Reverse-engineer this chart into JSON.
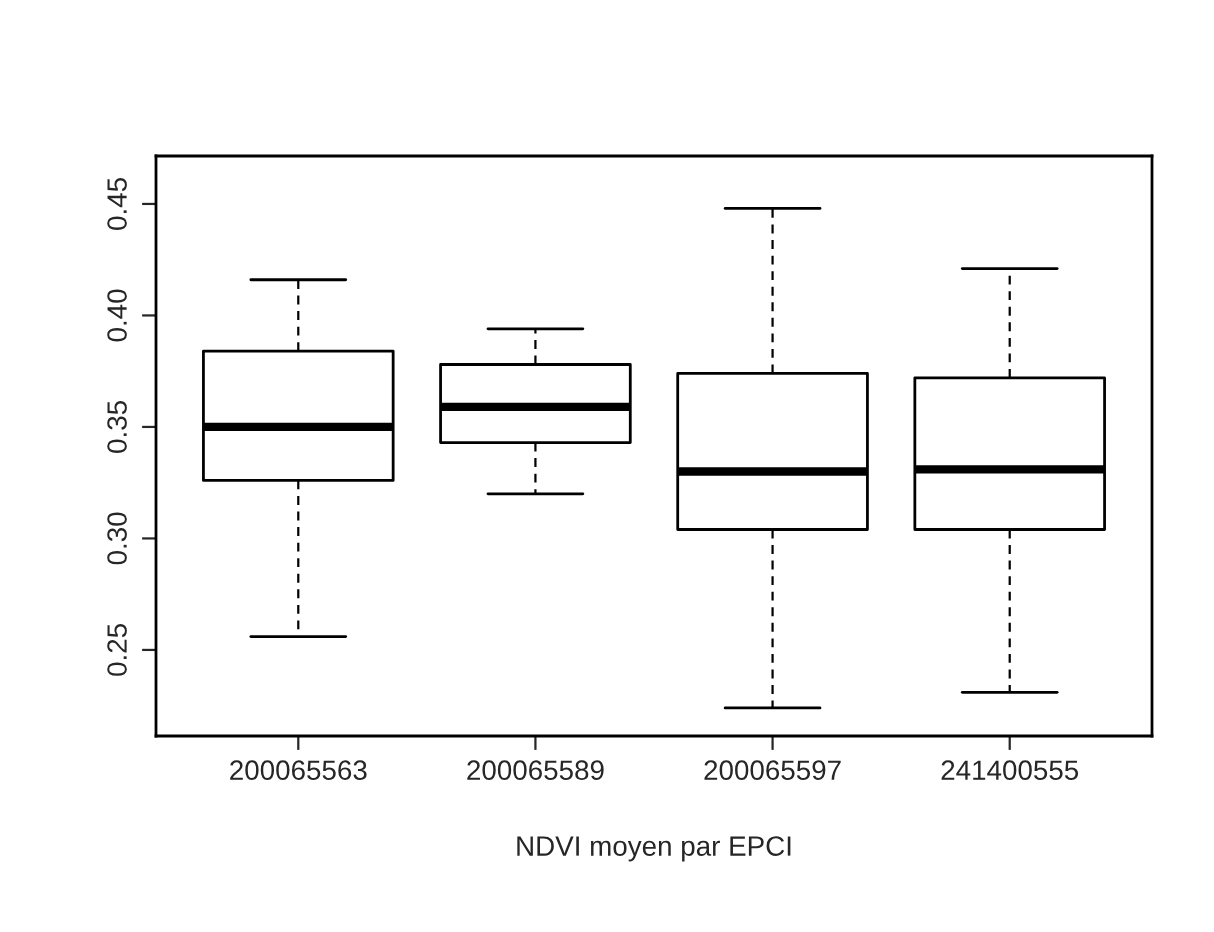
{
  "chart_data": {
    "type": "box",
    "xlabel": "NDVI moyen par EPCI",
    "categories": [
      "200065563",
      "200065589",
      "200065597",
      "241400555"
    ],
    "boxes": [
      {
        "low": 0.256,
        "q1": 0.326,
        "median": 0.35,
        "q3": 0.384,
        "high": 0.416
      },
      {
        "low": 0.32,
        "q1": 0.343,
        "median": 0.359,
        "q3": 0.378,
        "high": 0.394
      },
      {
        "low": 0.224,
        "q1": 0.304,
        "median": 0.33,
        "q3": 0.374,
        "high": 0.448
      },
      {
        "low": 0.231,
        "q1": 0.304,
        "median": 0.331,
        "q3": 0.372,
        "high": 0.421
      }
    ],
    "ylim": [
      0.2114,
      0.4715
    ],
    "yticks": [
      {
        "value": 0.25,
        "label": "0.25"
      },
      {
        "value": 0.3,
        "label": "0.30"
      },
      {
        "value": 0.35,
        "label": "0.35"
      },
      {
        "value": 0.4,
        "label": "0.40"
      },
      {
        "value": 0.45,
        "label": "0.45"
      }
    ],
    "grid": false
  }
}
